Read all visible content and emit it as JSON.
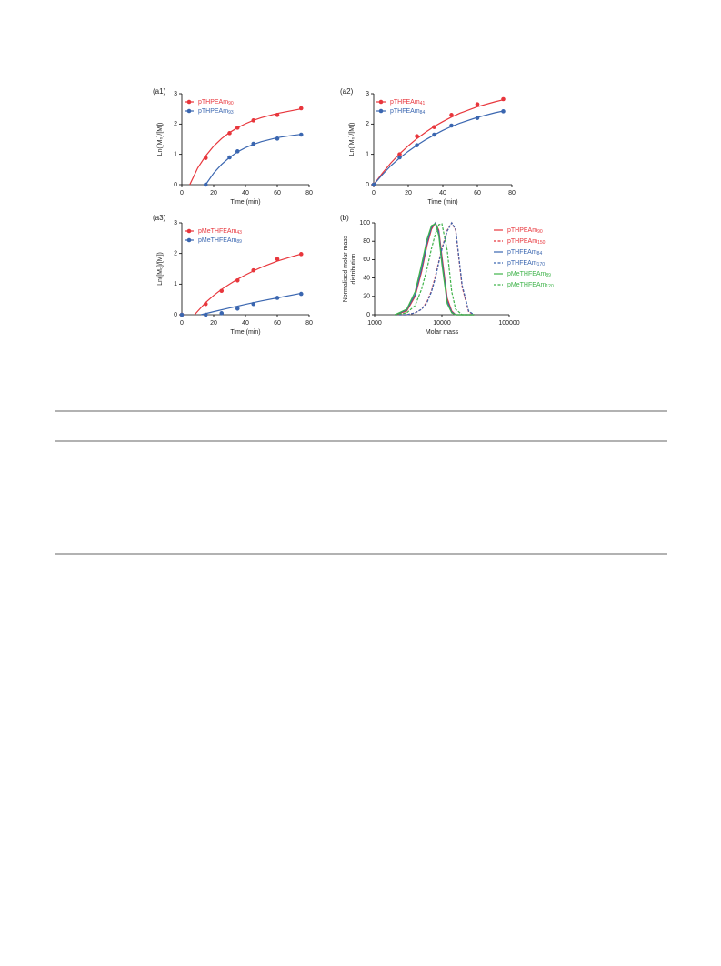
{
  "chart_data": [
    {
      "type": "line",
      "title": "(a1)",
      "xlabel": "Time (min)",
      "ylabel": "Ln([M₀]/[M])",
      "xlim": [
        0,
        80
      ],
      "ylim": [
        0,
        3
      ],
      "xticks": [
        0,
        20,
        40,
        60,
        80
      ],
      "yticks": [
        0,
        1,
        2,
        3
      ],
      "series": [
        {
          "name": "pTHPEAm",
          "sub": "90",
          "color": "#e8363c",
          "x": [
            15,
            30,
            35,
            45,
            60,
            75
          ],
          "values": [
            0.88,
            1.7,
            1.88,
            2.12,
            2.3,
            2.52
          ],
          "fit_x": [
            5,
            10,
            15,
            20,
            25,
            30,
            35,
            40,
            45,
            50,
            60,
            70,
            75
          ],
          "fit_values": [
            0,
            0.55,
            0.95,
            1.27,
            1.52,
            1.72,
            1.88,
            2.01,
            2.12,
            2.21,
            2.35,
            2.45,
            2.5
          ]
        },
        {
          "name": "pTHPEAm",
          "sub": "93",
          "color": "#3a66b0",
          "x": [
            15,
            30,
            35,
            45,
            60,
            75
          ],
          "values": [
            0,
            0.9,
            1.1,
            1.35,
            1.52,
            1.65
          ],
          "fit_x": [
            15,
            20,
            25,
            30,
            35,
            40,
            45,
            50,
            60,
            70,
            75
          ],
          "fit_values": [
            0,
            0.38,
            0.67,
            0.9,
            1.08,
            1.22,
            1.33,
            1.42,
            1.55,
            1.63,
            1.66
          ]
        }
      ]
    },
    {
      "type": "line",
      "title": "(a2)",
      "xlabel": "Time (min)",
      "ylabel": "Ln([M₀]/[M])",
      "xlim": [
        0,
        80
      ],
      "ylim": [
        0,
        3
      ],
      "xticks": [
        0,
        20,
        40,
        60,
        80
      ],
      "yticks": [
        0,
        1,
        2,
        3
      ],
      "series": [
        {
          "name": "pTHFEAm",
          "sub": "41",
          "color": "#e8363c",
          "x": [
            0,
            15,
            25,
            35,
            45,
            60,
            75
          ],
          "values": [
            0,
            1.0,
            1.6,
            1.9,
            2.3,
            2.65,
            2.82
          ],
          "fit_x": [
            0,
            5,
            10,
            15,
            20,
            25,
            30,
            35,
            40,
            45,
            50,
            60,
            70,
            75
          ],
          "fit_values": [
            0,
            0.38,
            0.72,
            1.02,
            1.28,
            1.52,
            1.73,
            1.92,
            2.08,
            2.23,
            2.36,
            2.57,
            2.73,
            2.8
          ]
        },
        {
          "name": "pTHFEAm",
          "sub": "84",
          "color": "#3a66b0",
          "x": [
            0,
            15,
            25,
            35,
            45,
            60,
            75
          ],
          "values": [
            0,
            0.9,
            1.3,
            1.65,
            1.95,
            2.2,
            2.42
          ],
          "fit_x": [
            0,
            5,
            10,
            15,
            20,
            25,
            30,
            35,
            40,
            45,
            50,
            60,
            70,
            75
          ],
          "fit_values": [
            0,
            0.33,
            0.63,
            0.88,
            1.1,
            1.3,
            1.48,
            1.64,
            1.79,
            1.92,
            2.03,
            2.22,
            2.37,
            2.43
          ]
        }
      ]
    },
    {
      "type": "line",
      "title": "(a3)",
      "xlabel": "Time (min)",
      "ylabel": "Ln([M₀]/[M])",
      "xlim": [
        0,
        80
      ],
      "ylim": [
        0,
        3
      ],
      "xticks": [
        0,
        20,
        40,
        60,
        80
      ],
      "yticks": [
        0,
        1,
        2,
        3
      ],
      "series": [
        {
          "name": "pMeTHFEAm",
          "sub": "43",
          "color": "#e8363c",
          "x": [
            0,
            15,
            25,
            35,
            45,
            60,
            75
          ],
          "values": [
            0,
            0.35,
            0.78,
            1.12,
            1.45,
            1.82,
            1.98
          ],
          "fit_x": [
            8,
            15,
            20,
            25,
            30,
            35,
            40,
            45,
            50,
            60,
            70,
            75
          ],
          "fit_values": [
            0,
            0.4,
            0.63,
            0.83,
            1.0,
            1.16,
            1.3,
            1.43,
            1.55,
            1.75,
            1.91,
            1.98
          ]
        },
        {
          "name": "pMeTHFEAm",
          "sub": "89",
          "color": "#3a66b0",
          "x": [
            0,
            15,
            25,
            35,
            45,
            60,
            75
          ],
          "values": [
            0,
            0,
            0.05,
            0.2,
            0.35,
            0.55,
            0.68
          ],
          "fit_x": [
            12,
            20,
            30,
            40,
            50,
            60,
            75
          ],
          "fit_values": [
            0,
            0.1,
            0.22,
            0.34,
            0.45,
            0.55,
            0.7
          ]
        }
      ]
    },
    {
      "type": "distribution",
      "title": "(b)",
      "xlabel": "Molar mass",
      "ylabel": [
        "Normalised molar mass",
        "distribution"
      ],
      "xscale": "log",
      "xlim": [
        1000,
        100000
      ],
      "ylim": [
        0,
        100
      ],
      "xticks": [
        1000,
        10000,
        100000
      ],
      "yticks": [
        0,
        20,
        40,
        60,
        80,
        100
      ],
      "x": [
        2000,
        3000,
        4000,
        5000,
        6000,
        7000,
        8000,
        9000,
        10000,
        12000,
        14000,
        16000,
        20000,
        25000,
        30000
      ],
      "series": [
        {
          "name": "pTHPEAm",
          "sub": "90",
          "color": "#e8363c",
          "dash": false,
          "values": [
            0,
            4,
            20,
            47,
            75,
            93,
            100,
            92,
            64,
            18,
            4,
            0,
            0,
            0,
            0
          ]
        },
        {
          "name": "pTHPEAm",
          "sub": "150",
          "color": "#e8363c",
          "dash": true,
          "values": [
            0,
            0,
            2,
            6,
            14,
            26,
            42,
            58,
            72,
            92,
            100,
            92,
            30,
            3,
            0
          ]
        },
        {
          "name": "pTHFEAm",
          "sub": "84",
          "color": "#3a66b0",
          "dash": false,
          "values": [
            0,
            5,
            22,
            50,
            78,
            95,
            100,
            90,
            60,
            15,
            3,
            0,
            0,
            0,
            0
          ]
        },
        {
          "name": "pTHFEAm",
          "sub": "170",
          "color": "#3a66b0",
          "dash": true,
          "values": [
            0,
            0,
            2,
            6,
            13,
            25,
            40,
            57,
            71,
            91,
            100,
            93,
            32,
            4,
            0
          ]
        },
        {
          "name": "pMeTHFEAm",
          "sub": "89",
          "color": "#3fb34a",
          "dash": false,
          "values": [
            0,
            6,
            25,
            55,
            82,
            97,
            99,
            86,
            55,
            12,
            2,
            0,
            0,
            0,
            0
          ]
        },
        {
          "name": "pMeTHFEAm",
          "sub": "120",
          "color": "#3fb34a",
          "dash": true,
          "values": [
            0,
            2,
            10,
            28,
            50,
            72,
            88,
            98,
            99,
            70,
            25,
            6,
            0,
            0,
            0
          ]
        }
      ]
    }
  ]
}
